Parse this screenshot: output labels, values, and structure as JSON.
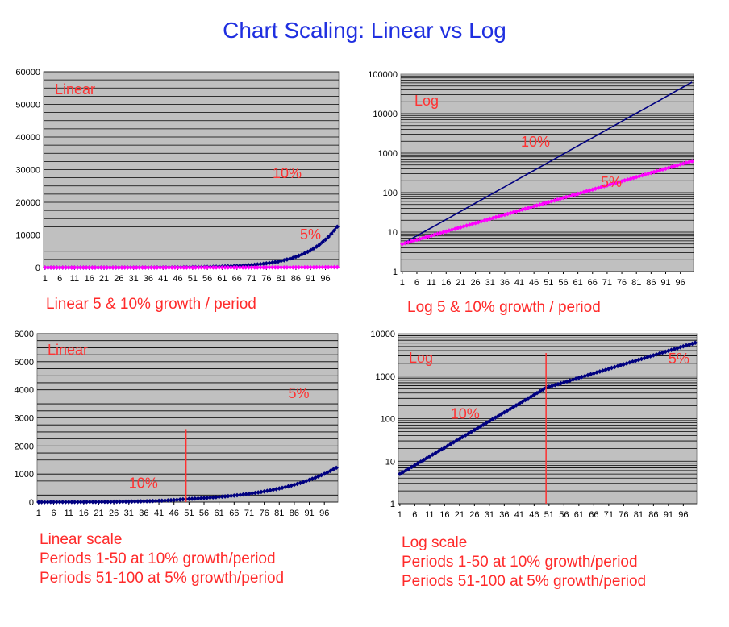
{
  "title": "Chart Scaling: Linear vs Log",
  "colors": {
    "title": "#1f2fe0",
    "plot_bg": "#c0c0c0",
    "line_10": "#000080",
    "line_5": "#ff00ff",
    "label": "#ff3333"
  },
  "chart_data": [
    {
      "type": "line",
      "scale": "linear",
      "grid": true,
      "corner_label": "Linear",
      "caption": [
        "Linear 5 & 10% growth / period"
      ],
      "ylim": [
        0,
        60000
      ],
      "yticks": [
        "0",
        "10000",
        "20000",
        "30000",
        "40000",
        "50000",
        "60000"
      ],
      "xticks": [
        "1",
        "6",
        "11",
        "16",
        "21",
        "26",
        "31",
        "36",
        "41",
        "46",
        "51",
        "56",
        "61",
        "66",
        "71",
        "76",
        "81",
        "86",
        "91",
        "96"
      ],
      "x_range": [
        1,
        100
      ],
      "series": [
        {
          "name": "10%",
          "color": "#000080",
          "markers": true,
          "start": 1,
          "rates": [
            {
              "from": 1,
              "to": 100,
              "rate": 0.1
            }
          ]
        },
        {
          "name": "5%",
          "color": "#ff00ff",
          "markers": true,
          "start": 1,
          "rates": [
            {
              "from": 1,
              "to": 100,
              "rate": 0.05
            }
          ]
        }
      ]
    },
    {
      "type": "line",
      "scale": "log",
      "grid": true,
      "corner_label": "Log",
      "caption": [
        "Log 5 & 10% growth / period"
      ],
      "ylim": [
        1,
        100000
      ],
      "yticks": [
        "1",
        "10",
        "100",
        "1000",
        "10000",
        "100000"
      ],
      "xticks": [
        "1",
        "6",
        "11",
        "16",
        "21",
        "26",
        "31",
        "36",
        "41",
        "46",
        "51",
        "56",
        "61",
        "66",
        "71",
        "76",
        "81",
        "86",
        "91",
        "96"
      ],
      "x_range": [
        1,
        100
      ],
      "series": [
        {
          "name": "10%",
          "color": "#000080",
          "markers": false,
          "start": 5,
          "rates": [
            {
              "from": 1,
              "to": 100,
              "rate": 0.1
            }
          ]
        },
        {
          "name": "5%",
          "color": "#ff00ff",
          "markers": true,
          "start": 5,
          "rates": [
            {
              "from": 1,
              "to": 100,
              "rate": 0.05
            }
          ]
        }
      ]
    },
    {
      "type": "line",
      "scale": "linear",
      "grid": true,
      "corner_label": "Linear",
      "caption": [
        "Linear scale",
        "Periods 1-50 at 10% growth/period",
        "Periods 51-100 at 5% growth/period"
      ],
      "ylim": [
        0,
        6000
      ],
      "yticks": [
        "0",
        "1000",
        "2000",
        "3000",
        "4000",
        "5000",
        "6000"
      ],
      "xticks": [
        "1",
        "6",
        "11",
        "16",
        "21",
        "26",
        "31",
        "36",
        "41",
        "46",
        "51",
        "56",
        "61",
        "66",
        "71",
        "76",
        "81",
        "86",
        "91",
        "96"
      ],
      "x_range": [
        1,
        100
      ],
      "marker_line_x": 50,
      "segment_labels": [
        {
          "text": "10%",
          "x": 31,
          "y": 500
        },
        {
          "text": "5%",
          "x": 84,
          "y": 3700
        }
      ],
      "series": [
        {
          "name": "",
          "color": "#000080",
          "markers": true,
          "start": 1,
          "rates": [
            {
              "from": 1,
              "to": 50,
              "rate": 0.1
            },
            {
              "from": 51,
              "to": 100,
              "rate": 0.05
            }
          ]
        }
      ]
    },
    {
      "type": "line",
      "scale": "log",
      "grid": true,
      "corner_label": "Log",
      "caption": [
        "Log scale",
        "Periods 1-50 at 10% growth/period",
        "Periods 51-100 at 5% growth/period"
      ],
      "ylim": [
        1,
        10000
      ],
      "yticks": [
        "1",
        "10",
        "100",
        "1000",
        "10000"
      ],
      "xticks": [
        "1",
        "6",
        "11",
        "16",
        "21",
        "26",
        "31",
        "36",
        "41",
        "46",
        "51",
        "56",
        "61",
        "66",
        "71",
        "76",
        "81",
        "86",
        "91",
        "96"
      ],
      "x_range": [
        1,
        100
      ],
      "marker_line_x": 50,
      "segment_labels": [
        {
          "text": "10%",
          "x": 18,
          "y": 100
        },
        {
          "text": "5%",
          "x": 91,
          "y": 2000
        }
      ],
      "series": [
        {
          "name": "",
          "color": "#000080",
          "markers": true,
          "start": 5,
          "rates": [
            {
              "from": 1,
              "to": 50,
              "rate": 0.1
            },
            {
              "from": 51,
              "to": 100,
              "rate": 0.05
            }
          ]
        }
      ]
    }
  ]
}
